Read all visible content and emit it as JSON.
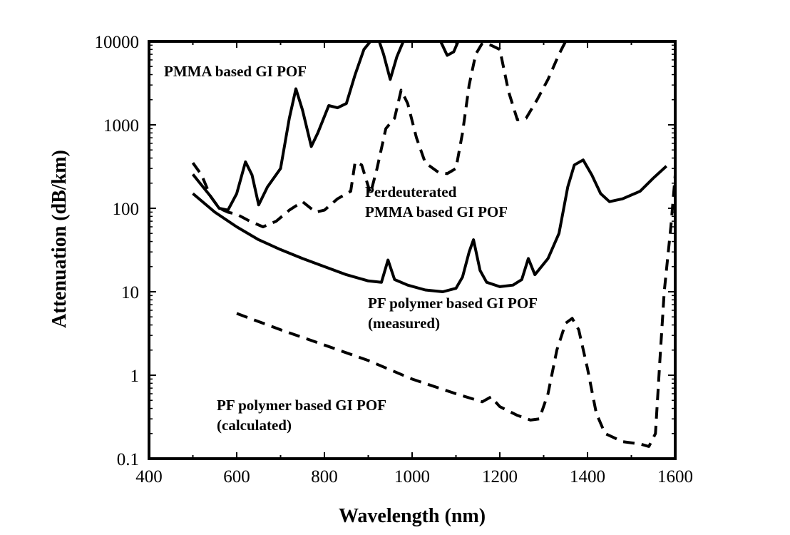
{
  "chart_data": {
    "type": "line",
    "xlabel": "Wavelength (nm)",
    "ylabel": "Attenuation (dB/km)",
    "xlim": [
      400,
      1600
    ],
    "ylim": [
      0.1,
      10000
    ],
    "yscale": "log",
    "x_ticks": [
      400,
      600,
      800,
      1000,
      1200,
      1400,
      1600
    ],
    "x_tick_labels": [
      "400",
      "600",
      "800",
      "1000",
      "1200",
      "1400",
      "1600"
    ],
    "y_ticks": [
      0.1,
      1,
      10,
      100,
      1000,
      10000
    ],
    "y_tick_labels": [
      "0.1",
      "1",
      "10",
      "100",
      "1000",
      "10000"
    ],
    "grid": false,
    "legend": "none",
    "series": [
      {
        "style": "solid",
        "points": [
          [
            500,
            255
          ],
          [
            540,
            140
          ],
          [
            560,
            100
          ],
          [
            580,
            95
          ],
          [
            600,
            150
          ],
          [
            620,
            360
          ],
          [
            635,
            250
          ],
          [
            650,
            110
          ],
          [
            670,
            180
          ],
          [
            700,
            300
          ],
          [
            720,
            1200
          ],
          [
            735,
            2700
          ],
          [
            750,
            1500
          ],
          [
            770,
            550
          ],
          [
            785,
            800
          ],
          [
            810,
            1700
          ],
          [
            830,
            1600
          ],
          [
            850,
            1800
          ],
          [
            870,
            4000
          ],
          [
            890,
            8000
          ],
          [
            905,
            10000
          ]
        ]
      },
      {
        "style": "solid",
        "points": [
          [
            925,
            10000
          ],
          [
            935,
            7000
          ],
          [
            950,
            3500
          ],
          [
            965,
            6500
          ],
          [
            980,
            10000
          ]
        ]
      },
      {
        "style": "solid",
        "points": [
          [
            1065,
            10000
          ],
          [
            1080,
            6800
          ],
          [
            1095,
            7500
          ],
          [
            1105,
            10000
          ]
        ]
      },
      {
        "style": "dashed",
        "points": [
          [
            500,
            350
          ],
          [
            520,
            250
          ],
          [
            540,
            140
          ],
          [
            560,
            100
          ],
          [
            580,
            90
          ],
          [
            600,
            85
          ],
          [
            630,
            70
          ],
          [
            660,
            60
          ],
          [
            690,
            70
          ],
          [
            720,
            95
          ],
          [
            750,
            120
          ],
          [
            780,
            90
          ],
          [
            800,
            95
          ],
          [
            830,
            130
          ],
          [
            860,
            160
          ],
          [
            870,
            360
          ],
          [
            885,
            330
          ],
          [
            905,
            150
          ],
          [
            920,
            300
          ],
          [
            940,
            900
          ],
          [
            960,
            1200
          ],
          [
            975,
            2600
          ],
          [
            990,
            1800
          ],
          [
            1010,
            700
          ],
          [
            1030,
            350
          ],
          [
            1060,
            270
          ],
          [
            1080,
            260
          ],
          [
            1100,
            300
          ],
          [
            1115,
            800
          ],
          [
            1130,
            3000
          ],
          [
            1145,
            7000
          ],
          [
            1160,
            9500
          ],
          [
            1180,
            9000
          ],
          [
            1200,
            8000
          ],
          [
            1220,
            2500
          ],
          [
            1240,
            1150
          ],
          [
            1260,
            1200
          ],
          [
            1285,
            2000
          ],
          [
            1310,
            3500
          ],
          [
            1335,
            7000
          ],
          [
            1350,
            10000
          ]
        ]
      },
      {
        "style": "solid",
        "points": [
          [
            500,
            150
          ],
          [
            550,
            90
          ],
          [
            600,
            60
          ],
          [
            650,
            42
          ],
          [
            700,
            32
          ],
          [
            750,
            25
          ],
          [
            800,
            20
          ],
          [
            850,
            16
          ],
          [
            900,
            13.5
          ],
          [
            930,
            13
          ],
          [
            945,
            24
          ],
          [
            960,
            14
          ],
          [
            990,
            12
          ],
          [
            1030,
            10.5
          ],
          [
            1070,
            10
          ],
          [
            1100,
            11
          ],
          [
            1115,
            15
          ],
          [
            1130,
            30
          ],
          [
            1140,
            42
          ],
          [
            1155,
            18
          ],
          [
            1170,
            13
          ],
          [
            1200,
            11.5
          ],
          [
            1230,
            12
          ],
          [
            1250,
            14
          ],
          [
            1265,
            25
          ],
          [
            1280,
            16
          ],
          [
            1310,
            25
          ],
          [
            1335,
            50
          ],
          [
            1355,
            180
          ],
          [
            1370,
            330
          ],
          [
            1390,
            380
          ],
          [
            1410,
            250
          ],
          [
            1430,
            150
          ],
          [
            1450,
            120
          ],
          [
            1480,
            130
          ],
          [
            1520,
            160
          ],
          [
            1550,
            230
          ],
          [
            1580,
            320
          ]
        ]
      },
      {
        "style": "dashed",
        "points": [
          [
            600,
            5.5
          ],
          [
            700,
            3.5
          ],
          [
            800,
            2.3
          ],
          [
            900,
            1.5
          ],
          [
            1000,
            0.9
          ],
          [
            1100,
            0.6
          ],
          [
            1160,
            0.48
          ],
          [
            1180,
            0.55
          ],
          [
            1200,
            0.42
          ],
          [
            1240,
            0.33
          ],
          [
            1270,
            0.29
          ],
          [
            1290,
            0.3
          ],
          [
            1310,
            0.6
          ],
          [
            1330,
            2.0
          ],
          [
            1350,
            4.2
          ],
          [
            1365,
            4.8
          ],
          [
            1380,
            3.5
          ],
          [
            1400,
            1.2
          ],
          [
            1420,
            0.35
          ],
          [
            1440,
            0.2
          ],
          [
            1480,
            0.16
          ],
          [
            1520,
            0.15
          ],
          [
            1540,
            0.14
          ],
          [
            1555,
            0.2
          ],
          [
            1565,
            1.5
          ],
          [
            1575,
            10
          ],
          [
            1590,
            60
          ],
          [
            1600,
            250
          ]
        ]
      }
    ],
    "annotations": [
      {
        "id": "pmma",
        "lines": [
          "PMMA based GI POF"
        ]
      },
      {
        "id": "perdeut",
        "lines": [
          "Perdeuterated",
          "PMMA based GI POF"
        ]
      },
      {
        "id": "pf_meas",
        "lines": [
          "PF polymer based GI POF",
          "(measured)"
        ]
      },
      {
        "id": "pf_calc",
        "lines": [
          "PF polymer based GI POF",
          "(calculated)"
        ]
      }
    ]
  }
}
